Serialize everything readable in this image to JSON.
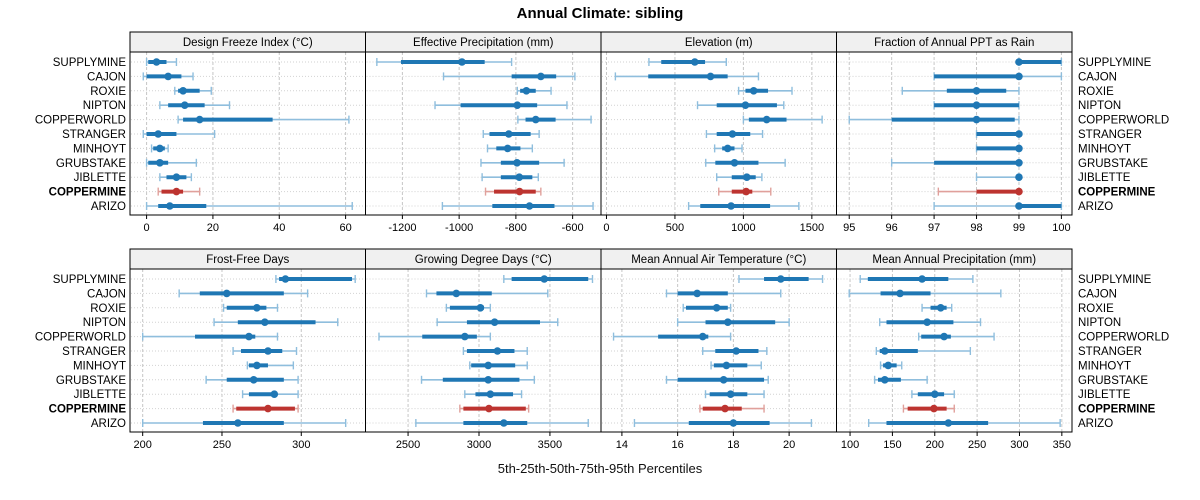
{
  "title": "Annual Climate: sibling",
  "caption": "5th-25th-50th-75th-95th Percentiles",
  "colors": {
    "blue": "#1f77b4",
    "blue_light": "#8fbedd",
    "red": "#bd3430",
    "red_light": "#e0a09b",
    "strip_bg": "#f0f0f0",
    "panel_border": "#000000",
    "grid_v": "#c6c6c6",
    "grid_row": "#d2d2d2",
    "text": "#000000"
  },
  "chart_data": {
    "type": "lattice-dotplot-errorbars",
    "percentile_labels": [
      "5th",
      "25th",
      "50th",
      "75th",
      "95th"
    ],
    "legend_note": "each bar: thin line = 5th-95th, thick bar = 25th-75th, dot = 50th percentile",
    "rows": [
      "SUPPLYMINE",
      "CAJON",
      "ROXIE",
      "NIPTON",
      "COPPERWORLD",
      "STRANGER",
      "MINHOYT",
      "GRUBSTAKE",
      "JIBLETTE",
      "COPPERMINE",
      "ARIZO"
    ],
    "highlight_row": "COPPERMINE",
    "panels": [
      {
        "title": "Design Freeze Index (°C)",
        "ticks": [
          0,
          20,
          40,
          60
        ],
        "xlim": [
          -5,
          66
        ],
        "values": {
          "SUPPLYMINE": [
            0,
            0.5,
            3,
            6,
            9
          ],
          "CAJON": [
            -1,
            0,
            6.5,
            10.5,
            14
          ],
          "ROXIE": [
            8.5,
            9.5,
            11,
            16,
            19.5
          ],
          "NIPTON": [
            4,
            6.5,
            11.5,
            17.5,
            25
          ],
          "COPPERWORLD": [
            9.5,
            11,
            16,
            38,
            61
          ],
          "STRANGER": [
            -1,
            0,
            3.5,
            9,
            20.5
          ],
          "MINHOYT": [
            1.5,
            2,
            4,
            5.5,
            6.5
          ],
          "GRUBSTAKE": [
            0,
            0.5,
            4,
            6.5,
            15
          ],
          "JIBLETTE": [
            4,
            6,
            9,
            12,
            13.5
          ],
          "COPPERMINE": [
            3.5,
            4.5,
            9,
            11,
            16
          ],
          "ARIZO": [
            0,
            3.5,
            7,
            18,
            62
          ]
        }
      },
      {
        "title": "Effective Precipitation (mm)",
        "ticks": [
          -1200,
          -1000,
          -800,
          -600
        ],
        "xlim": [
          -1330,
          -500
        ],
        "values": {
          "SUPPLYMINE": [
            -1290,
            -1205,
            -990,
            -910,
            -815
          ],
          "CAJON": [
            -1055,
            -815,
            -712,
            -658,
            -592
          ],
          "ROXIE": [
            -795,
            -785,
            -763,
            -730,
            -676
          ],
          "NIPTON": [
            -1085,
            -995,
            -795,
            -725,
            -620
          ],
          "COPPERWORLD": [
            -793,
            -766,
            -730,
            -660,
            -535
          ],
          "STRANGER": [
            -915,
            -893,
            -825,
            -748,
            -718
          ],
          "MINHOYT": [
            -900,
            -869,
            -829,
            -784,
            -742
          ],
          "GRUBSTAKE": [
            -923,
            -853,
            -796,
            -718,
            -630
          ],
          "JIBLETTE": [
            -919,
            -853,
            -788,
            -742,
            -721
          ],
          "COPPERMINE": [
            -907,
            -877,
            -787,
            -730,
            -712
          ],
          "ARIZO": [
            -1059,
            -883,
            -752,
            -664,
            -528
          ]
        }
      },
      {
        "title": "Elevation (m)",
        "ticks": [
          0,
          500,
          1000,
          1500
        ],
        "xlim": [
          -40,
          1680
        ],
        "values": {
          "SUPPLYMINE": [
            310,
            400,
            645,
            720,
            875
          ],
          "CAJON": [
            65,
            305,
            760,
            885,
            1110
          ],
          "ROXIE": [
            965,
            1015,
            1075,
            1180,
            1355
          ],
          "NIPTON": [
            665,
            805,
            1015,
            1245,
            1295
          ],
          "COPPERWORLD": [
            1000,
            1040,
            1170,
            1315,
            1575
          ],
          "STRANGER": [
            730,
            805,
            920,
            1050,
            1140
          ],
          "MINHOYT": [
            790,
            845,
            885,
            935,
            990
          ],
          "GRUBSTAKE": [
            725,
            795,
            935,
            1110,
            1305
          ],
          "JIBLETTE": [
            805,
            915,
            1025,
            1090,
            1135
          ],
          "COPPERMINE": [
            820,
            915,
            1020,
            1065,
            1200
          ],
          "ARIZO": [
            600,
            685,
            910,
            1195,
            1405
          ]
        }
      },
      {
        "title": "Fraction of Annual PPT as Rain",
        "ticks": [
          95,
          96,
          97,
          98,
          99,
          100
        ],
        "xlim": [
          94.7,
          100.25
        ],
        "values": {
          "SUPPLYMINE": [
            99,
            99,
            99,
            100,
            100
          ],
          "CAJON": [
            97,
            97,
            99,
            99,
            100
          ],
          "ROXIE": [
            96.25,
            97.3,
            98,
            98.7,
            99
          ],
          "NIPTON": [
            97,
            97,
            98,
            99,
            99
          ],
          "COPPERWORLD": [
            95,
            96,
            98,
            98.9,
            99
          ],
          "STRANGER": [
            98,
            98,
            99,
            99,
            99
          ],
          "MINHOYT": [
            98,
            98,
            99,
            99,
            99
          ],
          "GRUBSTAKE": [
            96,
            97,
            99,
            99,
            99
          ],
          "JIBLETTE": [
            98,
            99,
            99,
            99,
            99
          ],
          "COPPERMINE": [
            97.1,
            98,
            99,
            99,
            99
          ],
          "ARIZO": [
            97,
            99,
            99,
            100,
            100
          ]
        }
      },
      {
        "title": "Frost-Free Days",
        "ticks": [
          200,
          250,
          300
        ],
        "xlim": [
          192,
          340.5
        ],
        "values": {
          "SUPPLYMINE": [
            284,
            286,
            290,
            332,
            334
          ],
          "CAJON": [
            223,
            236,
            253,
            289,
            304
          ],
          "ROXIE": [
            251,
            253,
            272,
            278,
            285
          ],
          "NIPTON": [
            245,
            260,
            277,
            309,
            323
          ],
          "COPPERWORLD": [
            200,
            233,
            267,
            271,
            285
          ],
          "STRANGER": [
            257,
            262,
            279,
            288,
            297
          ],
          "MINHOYT": [
            266,
            267,
            272,
            279,
            295
          ],
          "GRUBSTAKE": [
            240,
            253,
            270,
            289,
            298
          ],
          "JIBLETTE": [
            263,
            267,
            283,
            285,
            298
          ],
          "COPPERMINE": [
            257,
            259,
            279,
            296,
            298
          ],
          "ARIZO": [
            200,
            238,
            260,
            289,
            328
          ]
        }
      },
      {
        "title": "Growing Degree Days (°C)",
        "ticks": [
          2500,
          3000,
          3500
        ],
        "xlim": [
          2200,
          3860
        ],
        "values": {
          "SUPPLYMINE": [
            3175,
            3230,
            3460,
            3770,
            3800
          ],
          "CAJON": [
            2630,
            2700,
            2840,
            3090,
            3485
          ],
          "ROXIE": [
            2770,
            2795,
            3010,
            3035,
            3080
          ],
          "NIPTON": [
            2705,
            2915,
            3110,
            3430,
            3555
          ],
          "COPPERWORLD": [
            2295,
            2600,
            2900,
            2985,
            3080
          ],
          "STRANGER": [
            2890,
            2915,
            3130,
            3250,
            3340
          ],
          "MINHOYT": [
            2935,
            2945,
            3065,
            3255,
            3340
          ],
          "GRUBSTAKE": [
            2595,
            2745,
            3065,
            3285,
            3390
          ],
          "JIBLETTE": [
            2900,
            2975,
            3080,
            3240,
            3300
          ],
          "COPPERMINE": [
            2865,
            2890,
            3070,
            3330,
            3350
          ],
          "ARIZO": [
            2555,
            2890,
            3175,
            3340,
            3770
          ]
        }
      },
      {
        "title": "Mean Annual Air Temperature (°C)",
        "ticks": [
          14,
          16,
          18,
          20
        ],
        "xlim": [
          13.25,
          21.7
        ],
        "values": {
          "SUPPLYMINE": [
            18.2,
            19.1,
            19.7,
            20.7,
            21.2
          ],
          "CAJON": [
            15.6,
            16.0,
            16.7,
            17.8,
            19.7
          ],
          "ROXIE": [
            16.2,
            16.3,
            17.4,
            17.8,
            17.9
          ],
          "NIPTON": [
            16.0,
            17.0,
            17.8,
            19.5,
            20.0
          ],
          "COPPERWORLD": [
            13.7,
            15.3,
            16.9,
            17.1,
            17.9
          ],
          "STRANGER": [
            16.9,
            17.35,
            18.1,
            18.9,
            19.2
          ],
          "MINHOYT": [
            17.2,
            17.3,
            17.75,
            18.5,
            19.0
          ],
          "GRUBSTAKE": [
            15.6,
            16.0,
            17.65,
            19.1,
            19.25
          ],
          "JIBLETTE": [
            17.0,
            17.15,
            17.9,
            18.5,
            19.1
          ],
          "COPPERMINE": [
            16.8,
            16.9,
            17.7,
            18.3,
            19.1
          ],
          "ARIZO": [
            14.45,
            16.4,
            18.0,
            19.3,
            20.8
          ]
        }
      },
      {
        "title": "Mean Annual Precipitation (mm)",
        "ticks": [
          100,
          150,
          200,
          250,
          300,
          350
        ],
        "xlim": [
          84,
          362
        ],
        "values": {
          "SUPPLYMINE": [
            112,
            121,
            185,
            216,
            245
          ],
          "CAJON": [
            99,
            136,
            159,
            195,
            278
          ],
          "ROXIE": [
            185,
            195,
            207,
            214,
            220
          ],
          "NIPTON": [
            135,
            143,
            191,
            222,
            254
          ],
          "COPPERWORLD": [
            181,
            184,
            211,
            219,
            270
          ],
          "STRANGER": [
            131,
            135,
            141,
            180,
            242
          ],
          "MINHOYT": [
            136,
            139,
            145,
            155,
            161
          ],
          "GRUBSTAKE": [
            129,
            133,
            141,
            160,
            191
          ],
          "JIBLETTE": [
            173,
            180,
            200,
            211,
            223
          ],
          "COPPERMINE": [
            163,
            168,
            199,
            214,
            223
          ],
          "ARIZO": [
            122,
            143,
            216,
            263,
            348
          ]
        }
      }
    ]
  }
}
